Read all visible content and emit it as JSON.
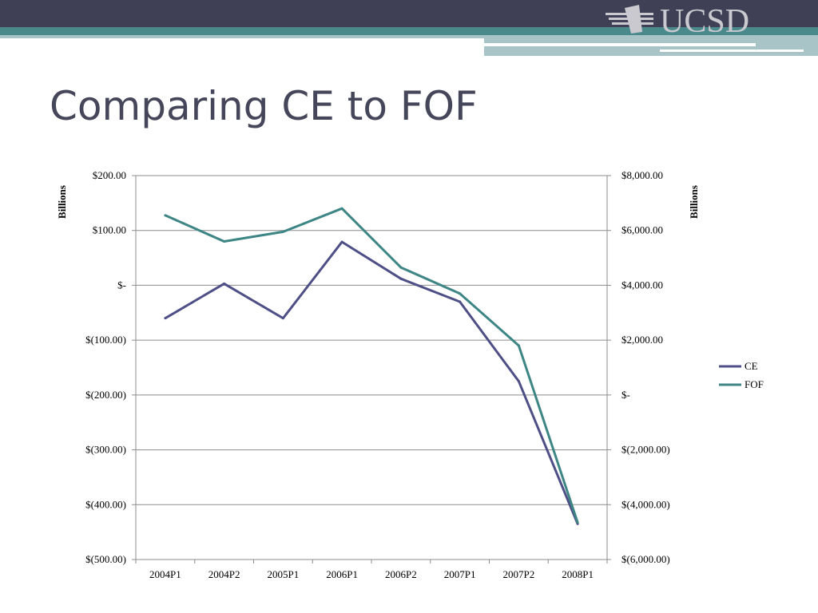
{
  "slide": {
    "title": "Comparing CE to FOF",
    "logo_text": "UCSD"
  },
  "colors": {
    "banner_dark": "#3f3f56",
    "banner_teal": "#4a8a8c",
    "banner_light": "#a9c4c6",
    "title": "#45465a",
    "ce": "#4e4f86",
    "fof": "#3e8585",
    "grid": "#8c8c8c"
  },
  "chart_data": {
    "type": "line",
    "categories": [
      "2004P1",
      "2004P2",
      "2005P1",
      "2006P1",
      "2006P2",
      "2007P1",
      "2007P2",
      "2008P1"
    ],
    "series": [
      {
        "name": "CE",
        "axis": "left",
        "values": [
          -60,
          3,
          -60,
          79,
          12,
          -30,
          -175,
          -435
        ]
      },
      {
        "name": "FOF",
        "axis": "right",
        "values": [
          6550,
          5600,
          5950,
          6800,
          4650,
          3700,
          1800,
          -4650
        ]
      }
    ],
    "y_left": {
      "label": "Billions",
      "ylim": [
        -500,
        200
      ],
      "ticks": [
        200,
        100,
        0,
        -100,
        -200,
        -300,
        -400,
        -500
      ],
      "tick_labels": [
        "$200.00",
        "$100.00",
        "$-",
        "$(100.00)",
        "$(200.00)",
        "$(300.00)",
        "$(400.00)",
        "$(500.00)"
      ]
    },
    "y_right": {
      "label": "Billions",
      "ylim": [
        -6000,
        8000
      ],
      "ticks": [
        8000,
        6000,
        4000,
        2000,
        0,
        -2000,
        -4000,
        -6000
      ],
      "tick_labels": [
        "$8,000.00",
        "$6,000.00",
        "$4,000.00",
        "$2,000.00",
        "$-",
        "$(2,000.00)",
        "$(4,000.00)",
        "$(6,000.00)"
      ]
    },
    "grid": true,
    "legend": "right"
  }
}
